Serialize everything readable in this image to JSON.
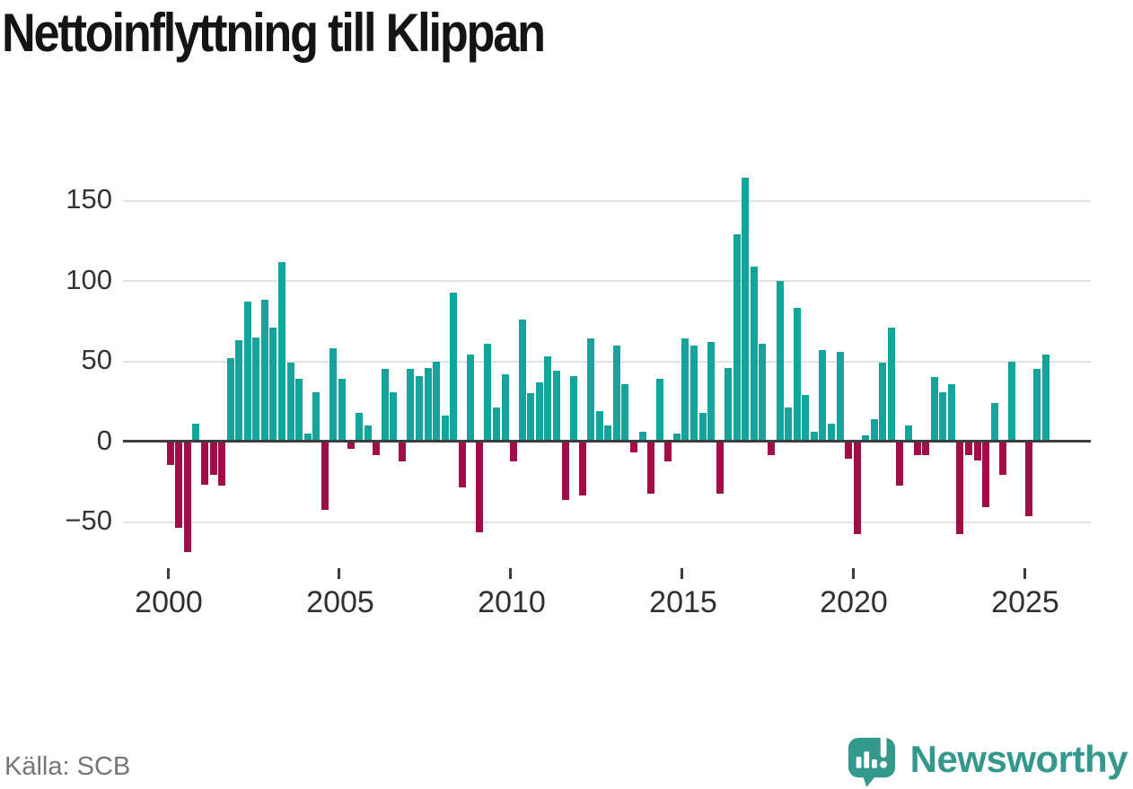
{
  "title": "Nettoinflyttning till Klippan",
  "source": "Källa: SCB",
  "brand": {
    "name": "Newsworthy",
    "icon": "newsworthy-logo-icon"
  },
  "colors": {
    "positive_bar": "#14a49b",
    "negative_bar": "#a00d47",
    "zero_line": "#3d3d3d",
    "gridline": "#e2e2e2",
    "title_text": "#141414",
    "axis_text": "#333333",
    "source_text": "#767676",
    "brand_teal": "#35988c"
  },
  "chart_data": {
    "type": "bar",
    "title": "Nettoinflyttning till Klippan",
    "xlabel": "",
    "ylabel": "",
    "frequency": "quarterly",
    "legend": "none",
    "grid": "horizontal",
    "ylim": [
      -75,
      175
    ],
    "y_ticks": [
      150,
      100,
      50,
      0,
      -50
    ],
    "y_tick_labels": [
      "150",
      "100",
      "50",
      "0",
      "−50"
    ],
    "x_tick_years": [
      2000,
      2005,
      2010,
      2015,
      2020,
      2025
    ],
    "x_tick_labels": [
      "2000",
      "2005",
      "2010",
      "2015",
      "2020",
      "2025"
    ],
    "categories": [
      "2000-Q1",
      "2000-Q2",
      "2000-Q3",
      "2000-Q4",
      "2001-Q1",
      "2001-Q2",
      "2001-Q3",
      "2001-Q4",
      "2002-Q1",
      "2002-Q2",
      "2002-Q3",
      "2002-Q4",
      "2003-Q1",
      "2003-Q2",
      "2003-Q3",
      "2003-Q4",
      "2004-Q1",
      "2004-Q2",
      "2004-Q3",
      "2004-Q4",
      "2005-Q1",
      "2005-Q2",
      "2005-Q3",
      "2005-Q4",
      "2006-Q1",
      "2006-Q2",
      "2006-Q3",
      "2006-Q4",
      "2007-Q1",
      "2007-Q2",
      "2007-Q3",
      "2007-Q4",
      "2008-Q1",
      "2008-Q2",
      "2008-Q3",
      "2008-Q4",
      "2009-Q1",
      "2009-Q2",
      "2009-Q3",
      "2009-Q4",
      "2010-Q1",
      "2010-Q2",
      "2010-Q3",
      "2010-Q4",
      "2011-Q1",
      "2011-Q2",
      "2011-Q3",
      "2011-Q4",
      "2012-Q1",
      "2012-Q2",
      "2012-Q3",
      "2012-Q4",
      "2013-Q1",
      "2013-Q2",
      "2013-Q3",
      "2013-Q4",
      "2014-Q1",
      "2014-Q2",
      "2014-Q3",
      "2014-Q4",
      "2015-Q1",
      "2015-Q2",
      "2015-Q3",
      "2015-Q4",
      "2016-Q1",
      "2016-Q2",
      "2016-Q3",
      "2016-Q4",
      "2017-Q1",
      "2017-Q2",
      "2017-Q3",
      "2017-Q4",
      "2018-Q1",
      "2018-Q2",
      "2018-Q3",
      "2018-Q4",
      "2019-Q1",
      "2019-Q2",
      "2019-Q3",
      "2019-Q4",
      "2020-Q1",
      "2020-Q2",
      "2020-Q3",
      "2020-Q4",
      "2021-Q1",
      "2021-Q2",
      "2021-Q3",
      "2021-Q4",
      "2022-Q1",
      "2022-Q2",
      "2022-Q3",
      "2022-Q4",
      "2023-Q1",
      "2023-Q2",
      "2023-Q3",
      "2023-Q4",
      "2024-Q1",
      "2024-Q2",
      "2024-Q3",
      "2024-Q4",
      "2025-Q1",
      "2025-Q2",
      "2025-Q3"
    ],
    "values": [
      -14,
      -53,
      -68,
      11,
      -26,
      -20,
      -27,
      52,
      63,
      87,
      65,
      88,
      71,
      112,
      49,
      39,
      5,
      31,
      -42,
      58,
      39,
      -4,
      18,
      10,
      -8,
      45,
      31,
      -12,
      45,
      41,
      46,
      50,
      16,
      93,
      -28,
      54,
      -56,
      61,
      21,
      42,
      -12,
      76,
      30,
      37,
      53,
      44,
      -36,
      41,
      -33,
      64,
      19,
      10,
      60,
      36,
      -6,
      6,
      -32,
      39,
      -12,
      5,
      64,
      60,
      18,
      62,
      -32,
      46,
      129,
      164,
      109,
      61,
      -8,
      100,
      21,
      83,
      29,
      6,
      57,
      11,
      56,
      -10,
      -57,
      4,
      14,
      49,
      71,
      -27,
      10,
      -8,
      -8,
      40,
      31,
      36,
      -57,
      -8,
      -11,
      -40,
      24,
      -20,
      50,
      0,
      -46,
      45,
      54
    ]
  }
}
